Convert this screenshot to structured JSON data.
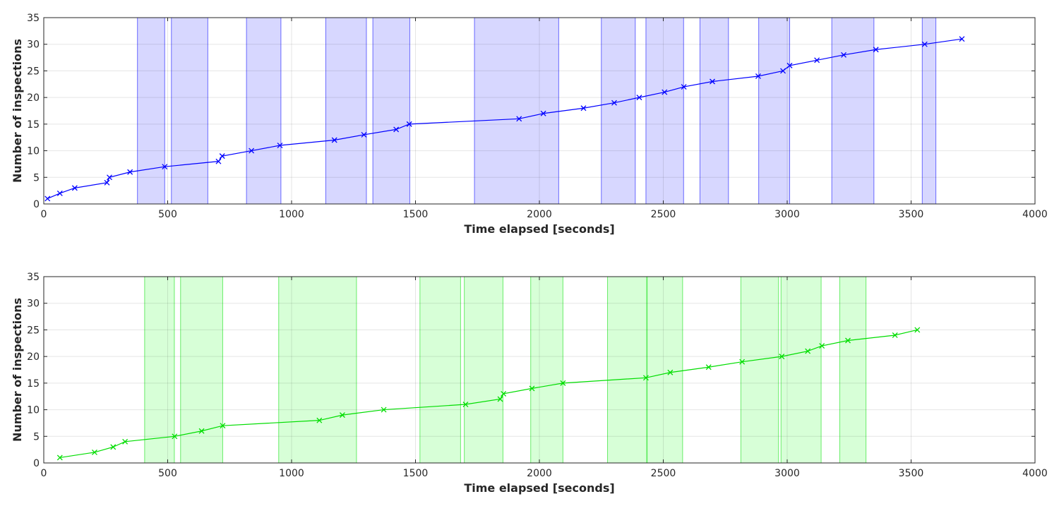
{
  "chart_data": [
    {
      "type": "line",
      "title": "",
      "xlabel": "Time elapsed [seconds]",
      "ylabel": "Number of inspections",
      "xlim": [
        0,
        4000
      ],
      "ylim": [
        0,
        35
      ],
      "xticks": [
        0,
        500,
        1000,
        1500,
        2000,
        2500,
        3000,
        3500,
        4000
      ],
      "yticks": [
        0,
        5,
        10,
        15,
        20,
        25,
        30,
        35
      ],
      "grid": true,
      "color": "#0000ff",
      "fill_color": "#d7d7ff",
      "marker": "x",
      "shaded_intervals": [
        [
          378,
          488
        ],
        [
          515,
          662
        ],
        [
          818,
          957
        ],
        [
          1138,
          1302
        ],
        [
          1328,
          1477
        ],
        [
          1738,
          2078
        ],
        [
          2250,
          2387
        ],
        [
          2430,
          2582
        ],
        [
          2648,
          2763
        ],
        [
          2885,
          3010
        ],
        [
          3180,
          3350
        ],
        [
          3545,
          3600
        ]
      ],
      "series": [
        {
          "x": [
            15,
            65,
            125,
            255,
            265,
            348,
            488,
            705,
            720,
            838,
            953,
            1173,
            1292,
            1422,
            1475,
            1918,
            2016,
            2178,
            2302,
            2403,
            2505,
            2583,
            2698,
            2883,
            2983,
            3010,
            3120,
            3228,
            3358,
            3555,
            3705
          ],
          "y": [
            1,
            2,
            3,
            4,
            5,
            6,
            7,
            8,
            9,
            10,
            11,
            12,
            13,
            14,
            15,
            16,
            17,
            18,
            19,
            20,
            21,
            22,
            23,
            24,
            25,
            26,
            27,
            28,
            29,
            30,
            31
          ]
        }
      ]
    },
    {
      "type": "line",
      "title": "",
      "xlabel": "Time elapsed [seconds]",
      "ylabel": "Number of inspections",
      "xlim": [
        0,
        4000
      ],
      "ylim": [
        0,
        35
      ],
      "xticks": [
        0,
        500,
        1000,
        1500,
        2000,
        2500,
        3000,
        3500,
        4000
      ],
      "yticks": [
        0,
        5,
        10,
        15,
        20,
        25,
        30,
        35
      ],
      "grid": true,
      "color": "#00dd00",
      "fill_color": "#d7ffd7",
      "marker": "x",
      "shaded_intervals": [
        [
          407,
          527
        ],
        [
          552,
          722
        ],
        [
          948,
          1262
        ],
        [
          1518,
          1682
        ],
        [
          1697,
          1853
        ],
        [
          1965,
          2095
        ],
        [
          2275,
          2433
        ],
        [
          2435,
          2578
        ],
        [
          2813,
          2965
        ],
        [
          2975,
          3137
        ],
        [
          3212,
          3318
        ]
      ],
      "series": [
        {
          "x": [
            65,
            205,
            280,
            328,
            528,
            637,
            722,
            1112,
            1205,
            1372,
            1702,
            1842,
            1855,
            1970,
            2095,
            2430,
            2528,
            2683,
            2818,
            2978,
            3083,
            3140,
            3245,
            3435,
            3525
          ],
          "y": [
            1,
            2,
            3,
            4,
            5,
            6,
            7,
            8,
            9,
            10,
            11,
            12,
            13,
            14,
            15,
            16,
            17,
            18,
            19,
            20,
            21,
            22,
            23,
            24,
            25
          ]
        }
      ]
    }
  ]
}
